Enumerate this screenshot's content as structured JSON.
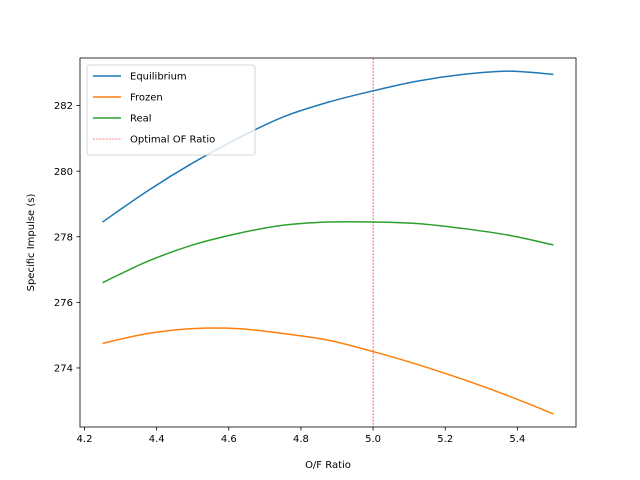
{
  "chart_data": {
    "type": "line",
    "title": "",
    "xlabel": "O/F Ratio",
    "ylabel": "Specific Impulse (s)",
    "xlim": [
      4.1875,
      5.5625
    ],
    "ylim": [
      272.2,
      283.45
    ],
    "xticks": [
      4.2,
      4.4,
      4.6,
      4.8,
      5.0,
      5.2,
      5.4
    ],
    "xtick_labels": [
      "4.2",
      "4.4",
      "4.6",
      "4.8",
      "5.0",
      "5.2",
      "5.4"
    ],
    "yticks": [
      274,
      276,
      278,
      280,
      282
    ],
    "ytick_labels": [
      "274",
      "276",
      "278",
      "280",
      "282"
    ],
    "grid": false,
    "legend_position": "top-left",
    "series": [
      {
        "name": "Equilibrium",
        "color": "#1f77b4",
        "x": [
          4.25,
          4.375,
          4.5,
          4.625,
          4.75,
          4.875,
          5.0,
          5.125,
          5.25,
          5.375,
          5.5
        ],
        "y": [
          278.45,
          279.4,
          280.25,
          281.0,
          281.65,
          282.1,
          282.45,
          282.75,
          282.95,
          283.05,
          282.95
        ]
      },
      {
        "name": "Frozen",
        "color": "#ff7f0e",
        "x": [
          4.25,
          4.375,
          4.5,
          4.625,
          4.75,
          4.875,
          5.0,
          5.125,
          5.25,
          5.375,
          5.5
        ],
        "y": [
          274.75,
          275.05,
          275.2,
          275.2,
          275.05,
          274.85,
          274.5,
          274.1,
          273.65,
          273.15,
          272.6
        ]
      },
      {
        "name": "Real",
        "color": "#2ca02c",
        "x": [
          4.25,
          4.375,
          4.5,
          4.625,
          4.75,
          4.875,
          5.0,
          5.125,
          5.25,
          5.375,
          5.5
        ],
        "y": [
          276.6,
          277.25,
          277.75,
          278.1,
          278.35,
          278.45,
          278.45,
          278.4,
          278.25,
          278.05,
          277.75
        ]
      }
    ],
    "vlines": [
      {
        "name": "Optimal OF Ratio",
        "x": 5.0,
        "color": "#ff0000",
        "style": "dashed"
      }
    ]
  }
}
